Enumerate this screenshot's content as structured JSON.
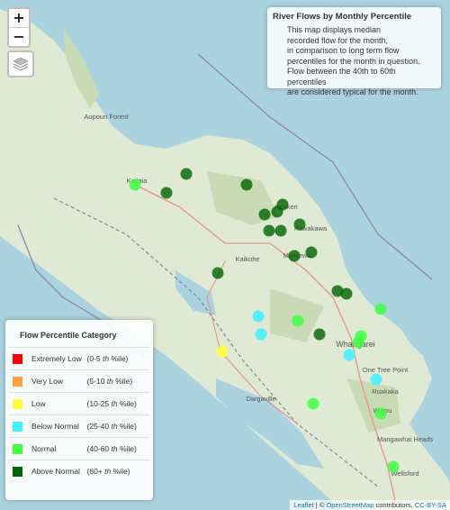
{
  "zoom": {
    "in_label": "+",
    "out_label": "−"
  },
  "info": {
    "title": "River Flows by Monthly Percentile",
    "lines": [
      "This map displays median",
      "recorded flow for the month,",
      "in comparison to long term flow",
      "percentiles for the month in question.",
      "Flow between the 40th to 60th percentiles",
      "are considered typical for the month."
    ]
  },
  "legend": {
    "title": "Flow Percentile Category",
    "items": [
      {
        "name": "Extremely Low",
        "range": "(0-5",
        "th": "th",
        "unit": "%ile)",
        "color": "#ff0000"
      },
      {
        "name": "Very Low",
        "range": "(5-10",
        "th": "th",
        "unit": "%ile)",
        "color": "#ffa040"
      },
      {
        "name": "Low",
        "range": "(10-25",
        "th": "th",
        "unit": "%ile)",
        "color": "#ffff40"
      },
      {
        "name": "Below Normal",
        "range": "(25-40",
        "th": "th",
        "unit": "%ile)",
        "color": "#40f0ff"
      },
      {
        "name": "Normal",
        "range": "(40-60",
        "th": "th",
        "unit": "%ile)",
        "color": "#40ff40"
      },
      {
        "name": "Above Normal",
        "range": "(60+",
        "th": "th",
        "unit": "%ile)",
        "color": "#006400"
      }
    ]
  },
  "place_labels": [
    "Aupouri Forest",
    "Kaitaia",
    "Kaikohe",
    "Dargaville",
    "Whangarei",
    "One Tree Point",
    "Ruakaka",
    "Waipu",
    "Mangawhai Heads",
    "Wellsford",
    "Kerikeri",
    "Moerewa",
    "Kawakawa"
  ],
  "attribution": {
    "leaflet": "Leaflet",
    "sep": " | © ",
    "osm": "OpenStreetMap",
    "mid": " contributors, ",
    "license": "CC-BY-SA"
  }
}
